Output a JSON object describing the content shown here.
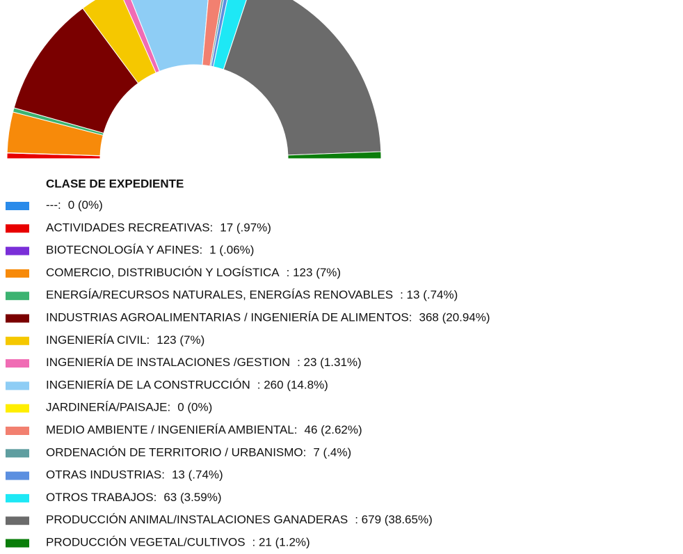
{
  "chart_data": {
    "type": "half-donut",
    "legend_title": "CLASE DE EXPEDIENTE",
    "categories": [
      "---:",
      "ACTIVIDADES RECREATIVAS:",
      "BIOTECNOLOGÍA Y AFINES:",
      "COMERCIO, DISTRIBUCIÓN Y LOGÍSTICA",
      "ENERGÍA/RECURSOS NATURALES, ENERGÍAS RENOVABLES",
      "INDUSTRIAS AGROALIMENTARIAS / INGENIERÍA DE ALIMENTOS:",
      "INGENIERÍA CIVIL:",
      "INGENIERÍA DE INSTALACIONES /GESTION",
      "INGENIERÍA DE LA CONSTRUCCIÓN",
      "JARDINERÍA/PAISAJE:",
      "MEDIO AMBIENTE / INGENIERÍA AMBIENTAL:",
      "ORDENACIÓN DE TERRITORIO / URBANISMO:",
      "OTRAS INDUSTRIAS:",
      "OTROS TRABAJOS:",
      "PRODUCCIÓN ANIMAL/INSTALACIONES GANADERAS",
      "PRODUCCIÓN VEGETAL/CULTIVOS"
    ],
    "values": [
      0,
      17,
      1,
      123,
      13,
      368,
      123,
      23,
      260,
      0,
      46,
      7,
      13,
      63,
      679,
      21
    ],
    "value_labels": [
      "0 (0%)",
      "17 (.97%)",
      "1 (.06%)",
      ": 123 (7%)",
      ": 13 (.74%)",
      "368 (20.94%)",
      "123 (7%)",
      ": 23 (1.31%)",
      ": 260 (14.8%)",
      "0 (0%)",
      "46 (2.62%)",
      "7 (.4%)",
      "13 (.74%)",
      "63 (3.59%)",
      ": 679 (38.65%)",
      ": 21 (1.2%)"
    ],
    "colors": [
      "#2a8bea",
      "#e80000",
      "#7a2fd8",
      "#f78a0a",
      "#3cb371",
      "#7a0000",
      "#f5c800",
      "#f06cb4",
      "#8ecdf5",
      "#ffee00",
      "#f28070",
      "#5f9ea0",
      "#5b8fe0",
      "#1ee8f5",
      "#6b6b6b",
      "#0a7d0a"
    ]
  }
}
